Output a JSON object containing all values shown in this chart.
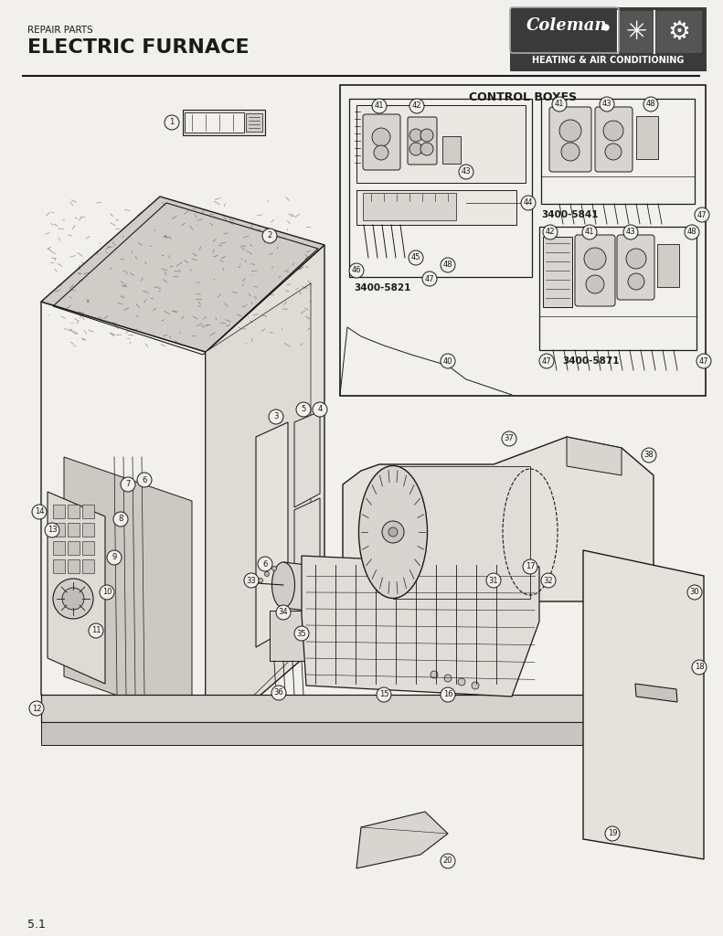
{
  "title_line1": "REPAIR PARTS",
  "title_line2": "ELECTRIC FURNACE",
  "brand_subtitle": "HEATING & AIR CONDITIONING",
  "page_number": "5.1",
  "control_box_title": "CONTROL BOXES",
  "model_numbers": [
    "3400-5821",
    "3400-5841",
    "3400-5871"
  ],
  "bg_color": "#f2f0ec",
  "logo_bg": "#3a3a3a",
  "line_color": "#1a1a1a",
  "figsize": [
    7.91,
    10.24
  ],
  "dpi": 100
}
